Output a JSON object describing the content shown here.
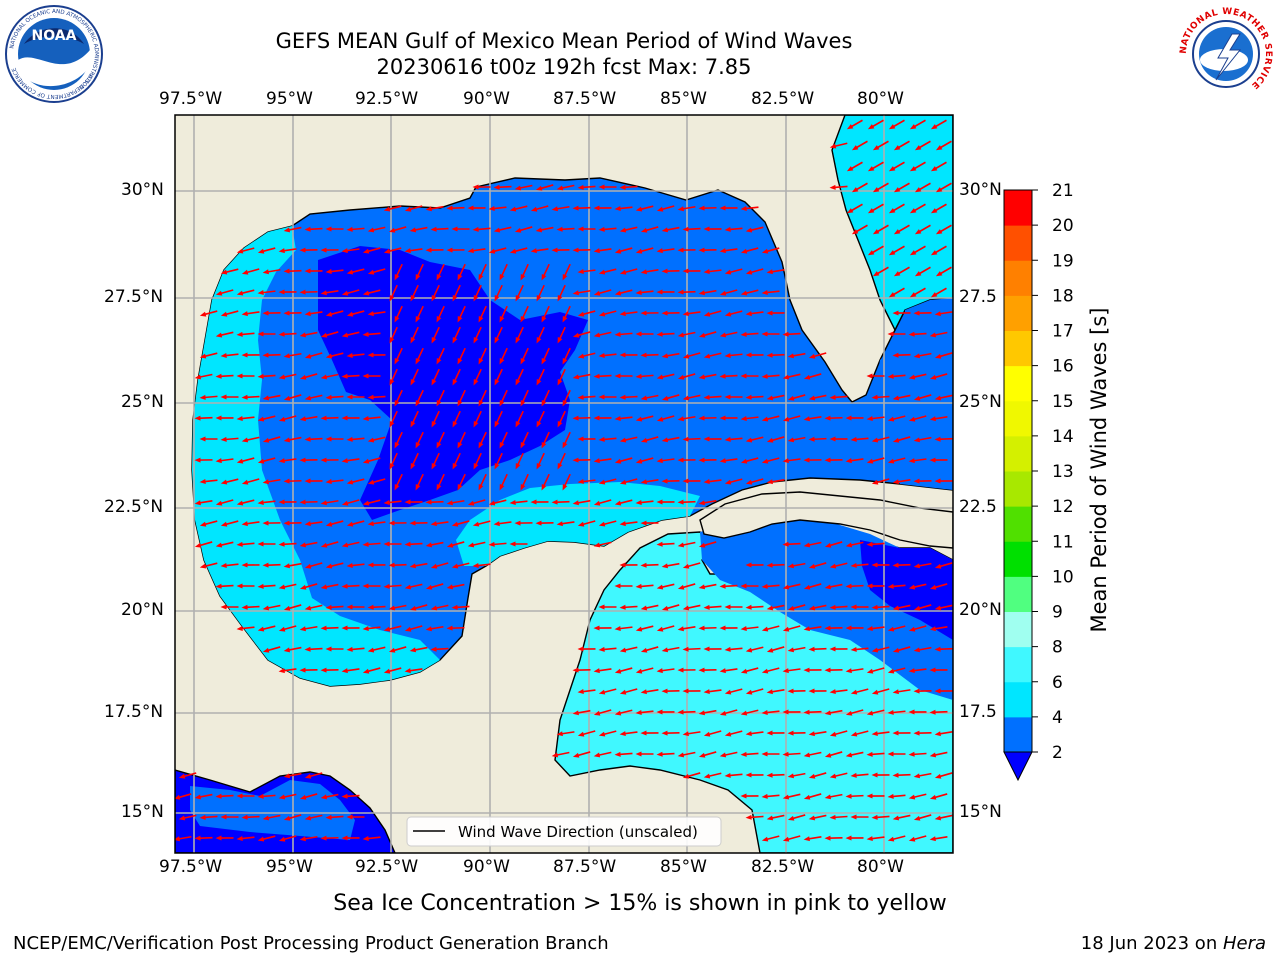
{
  "header": {
    "title": "GEFS MEAN Gulf of Mexico Mean Period of Wind Waves",
    "subtitle": "20230616 t00z 192h fcst   Max: 7.85"
  },
  "logos": {
    "left": "NOAA",
    "left_ring_top": "NATIONAL OCEANIC AND ATMOSPHERIC ADMINISTRATION",
    "left_ring_bottom": "U.S. DEPARTMENT OF COMMERCE",
    "right_ring": "NATIONAL WEATHER SERVICE"
  },
  "map": {
    "lon_labels": [
      "97.5°W",
      "95°W",
      "92.5°W",
      "90°W",
      "87.5°W",
      "85°W",
      "82.5°W",
      "80°W"
    ],
    "lat_labels_left": [
      "30°N",
      "27.5°N",
      "25°N",
      "22.5°N",
      "20°N",
      "17.5°N",
      "15°N"
    ],
    "lat_labels_right": [
      "30°N",
      "27.5",
      "25°N",
      "22.5",
      "20°N",
      "17.5",
      "15°N"
    ],
    "legend_label": "Wind Wave Direction (unscaled)",
    "colors": {
      "land": "#efecdb",
      "grid": "#b0b0b0",
      "arrow": "#ff0000"
    }
  },
  "colorbar": {
    "label": "Mean Period of Wind Waves [s]",
    "ticks": [
      "2",
      "4",
      "6",
      "8",
      "9",
      "10",
      "11",
      "12",
      "13",
      "14",
      "15",
      "16",
      "17",
      "18",
      "19",
      "20",
      "21"
    ],
    "bins": [
      {
        "from": "2",
        "to": "4",
        "color": "#0070ff"
      },
      {
        "from": "4",
        "to": "6",
        "color": "#00e6ff"
      },
      {
        "from": "6",
        "to": "8",
        "color": "#40f8ff"
      },
      {
        "from": "8",
        "to": "9",
        "color": "#a0fff0"
      },
      {
        "from": "9",
        "to": "10",
        "color": "#50ff80"
      },
      {
        "from": "10",
        "to": "11",
        "color": "#00e000"
      },
      {
        "from": "11",
        "to": "12",
        "color": "#50e000"
      },
      {
        "from": "12",
        "to": "13",
        "color": "#a8e800"
      },
      {
        "from": "13",
        "to": "14",
        "color": "#d4f000"
      },
      {
        "from": "14",
        "to": "15",
        "color": "#f0f800"
      },
      {
        "from": "15",
        "to": "16",
        "color": "#ffff00"
      },
      {
        "from": "16",
        "to": "17",
        "color": "#ffc800"
      },
      {
        "from": "17",
        "to": "18",
        "color": "#ffa000"
      },
      {
        "from": "18",
        "to": "19",
        "color": "#ff8000"
      },
      {
        "from": "19",
        "to": "20",
        "color": "#ff5000"
      },
      {
        "from": "20",
        "to": "21",
        "color": "#ff0000"
      }
    ],
    "under_color": "#0000ff"
  },
  "caption": "Sea Ice Concentration > 15% is shown in pink to yellow",
  "footer": {
    "left": "NCEP/EMC/Verification Post Processing Product Generation Branch",
    "right_date": "18 Jun 2023 on ",
    "right_machine": "Hera"
  }
}
